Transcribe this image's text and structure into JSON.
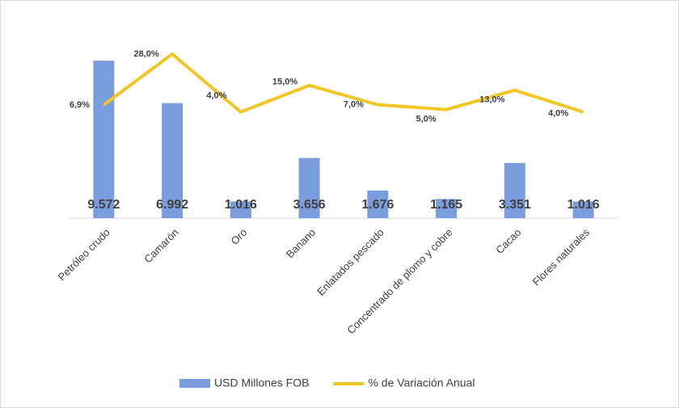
{
  "chart_data": {
    "type": "bar-line",
    "categories": [
      "Petróleo crudo",
      "Camarón",
      "Oro",
      "Banano",
      "Enlatados pescado",
      "Concentrado de plomo y cobre",
      "Cacao",
      "Flores naturales"
    ],
    "series": [
      {
        "name": "USD Millones FOB",
        "type": "bar",
        "color": "#7a9edd",
        "values": [
          9572,
          6992,
          1016,
          3656,
          1676,
          1165,
          3351,
          1016
        ],
        "value_labels": [
          "9.572",
          "6.992",
          "1.016",
          "3.656",
          "1.676",
          "1.165",
          "3.351",
          "1.016"
        ]
      },
      {
        "name": "% de Variación Anual",
        "type": "line",
        "color": "#f2c624",
        "axis": "y2",
        "values": [
          6.9,
          28.0,
          4.0,
          15.0,
          7.0,
          5.0,
          13.0,
          4.0
        ],
        "value_labels": [
          "6,9%",
          "28,0%",
          "4,0%",
          "15,0%",
          "7,0%",
          "5,0%",
          "13,0%",
          "4,0%"
        ]
      }
    ],
    "ylim": [
      0,
      11000
    ],
    "y2lim": [
      -40,
      35
    ],
    "legend": "bottom"
  }
}
